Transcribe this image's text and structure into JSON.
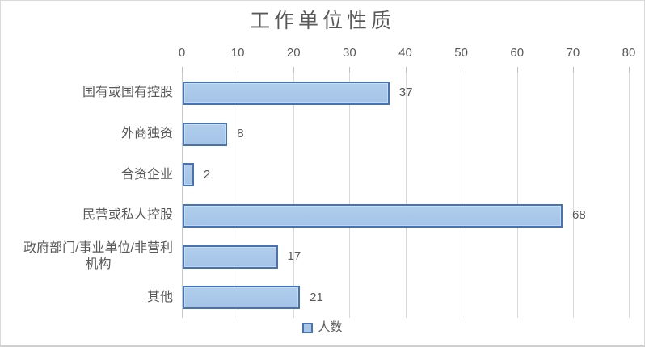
{
  "chart_data": {
    "type": "bar",
    "orientation": "horizontal",
    "title": "工作单位性质",
    "categories": [
      "国有或国有控股",
      "外商独资",
      "合资企业",
      "民营或私人控股",
      "政府部门/事业单位/非营利\n机构",
      "其他"
    ],
    "values": [
      37,
      8,
      2,
      68,
      17,
      21
    ],
    "data_labels": [
      "37",
      "8",
      "2",
      "68",
      "17",
      "21"
    ],
    "series_name": "人数",
    "value_axis": {
      "position": "top",
      "min": 0,
      "max": 80,
      "tick_interval": 10,
      "tick_labels": [
        "0",
        "10",
        "20",
        "30",
        "40",
        "50",
        "60",
        "70",
        "80"
      ]
    },
    "grid": true,
    "legend": {
      "position": "bottom",
      "entries": [
        "人数"
      ]
    },
    "colors": {
      "bar_fill": "#a8c7e8",
      "bar_border": "#4673b4",
      "gridline": "#d9d9d9",
      "text": "#595959"
    }
  }
}
